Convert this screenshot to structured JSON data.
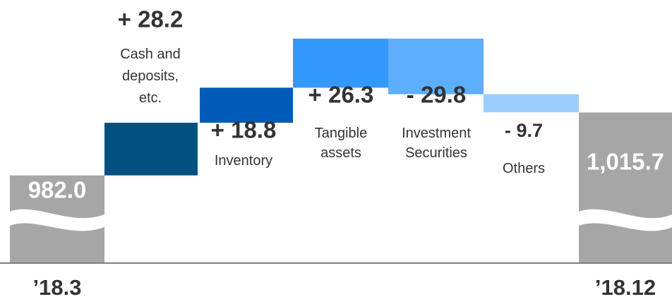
{
  "chart_data": {
    "type": "waterfall",
    "categories": [
      "’18.3",
      "Cash and\ndeposits,\netc.",
      "Inventory",
      "Tangible\nassets",
      "Investment\nSecurities",
      "Others",
      "’18.12"
    ],
    "measure": [
      "total",
      "delta",
      "delta",
      "delta",
      "delta",
      "delta",
      "total"
    ],
    "values": [
      982.0,
      28.2,
      18.8,
      26.3,
      -29.8,
      -9.7,
      1015.7
    ],
    "value_labels": [
      "982.0",
      "+ 28.2",
      "+ 18.8",
      "+ 26.3",
      "- 29.8",
      "- 9.7",
      "1,015.7"
    ],
    "colors": [
      "#a6a6a6",
      "#00517f",
      "#005bb8",
      "#3399ff",
      "#5eaefe",
      "#9bcdfb",
      "#a6a6a6"
    ],
    "ylim": [
      935,
      1062
    ]
  }
}
